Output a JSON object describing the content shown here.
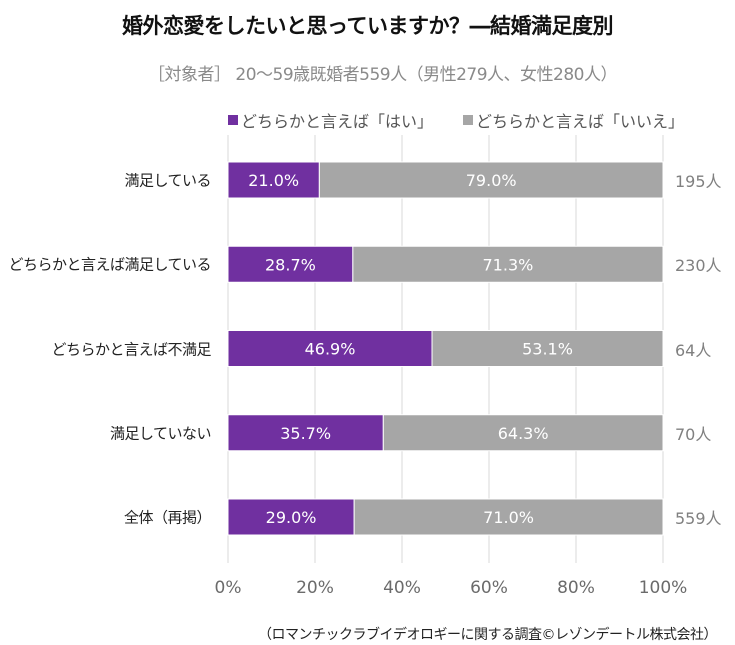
{
  "chart_data": {
    "type": "bar",
    "orientation": "horizontal",
    "stacked": true,
    "title": "婚外恋愛をしたいと思っていますか？―結婚満足度別",
    "subtitle": "［対象者］ 20～59歳既婚者559人（男性279人、女性280人）",
    "categories": [
      "満足している",
      "どちらかと言えば満足している",
      "どちらかと言えば不満足",
      "満足していない",
      "全体（再掲）"
    ],
    "series": [
      {
        "name": "どちらかと言えば「はい」",
        "color": "#7030a0",
        "values": [
          21.0,
          28.7,
          46.9,
          35.7,
          29.0
        ]
      },
      {
        "name": "どちらかと言えば「いいえ」",
        "color": "#a6a6a6",
        "values": [
          79.0,
          71.3,
          53.1,
          64.3,
          71.0
        ]
      }
    ],
    "value_labels": [
      [
        "21.0%",
        "28.7%",
        "46.9%",
        "35.7%",
        "29.0%"
      ],
      [
        "79.0%",
        "71.3%",
        "53.1%",
        "64.3%",
        "71.0%"
      ]
    ],
    "counts": [
      "195人",
      "230人",
      "64人",
      "70人",
      "559人"
    ],
    "xlim": [
      0,
      100
    ],
    "xticks": [
      0,
      20,
      40,
      60,
      80,
      100
    ],
    "xtick_labels": [
      "0%",
      "20%",
      "40%",
      "60%",
      "80%",
      "100%"
    ],
    "xlabel": "",
    "ylabel": "",
    "grid": true,
    "legend_position": "top",
    "source": "（ロマンチックラブイデオロギーに関する調査©レゾンデートル株式会社）"
  }
}
